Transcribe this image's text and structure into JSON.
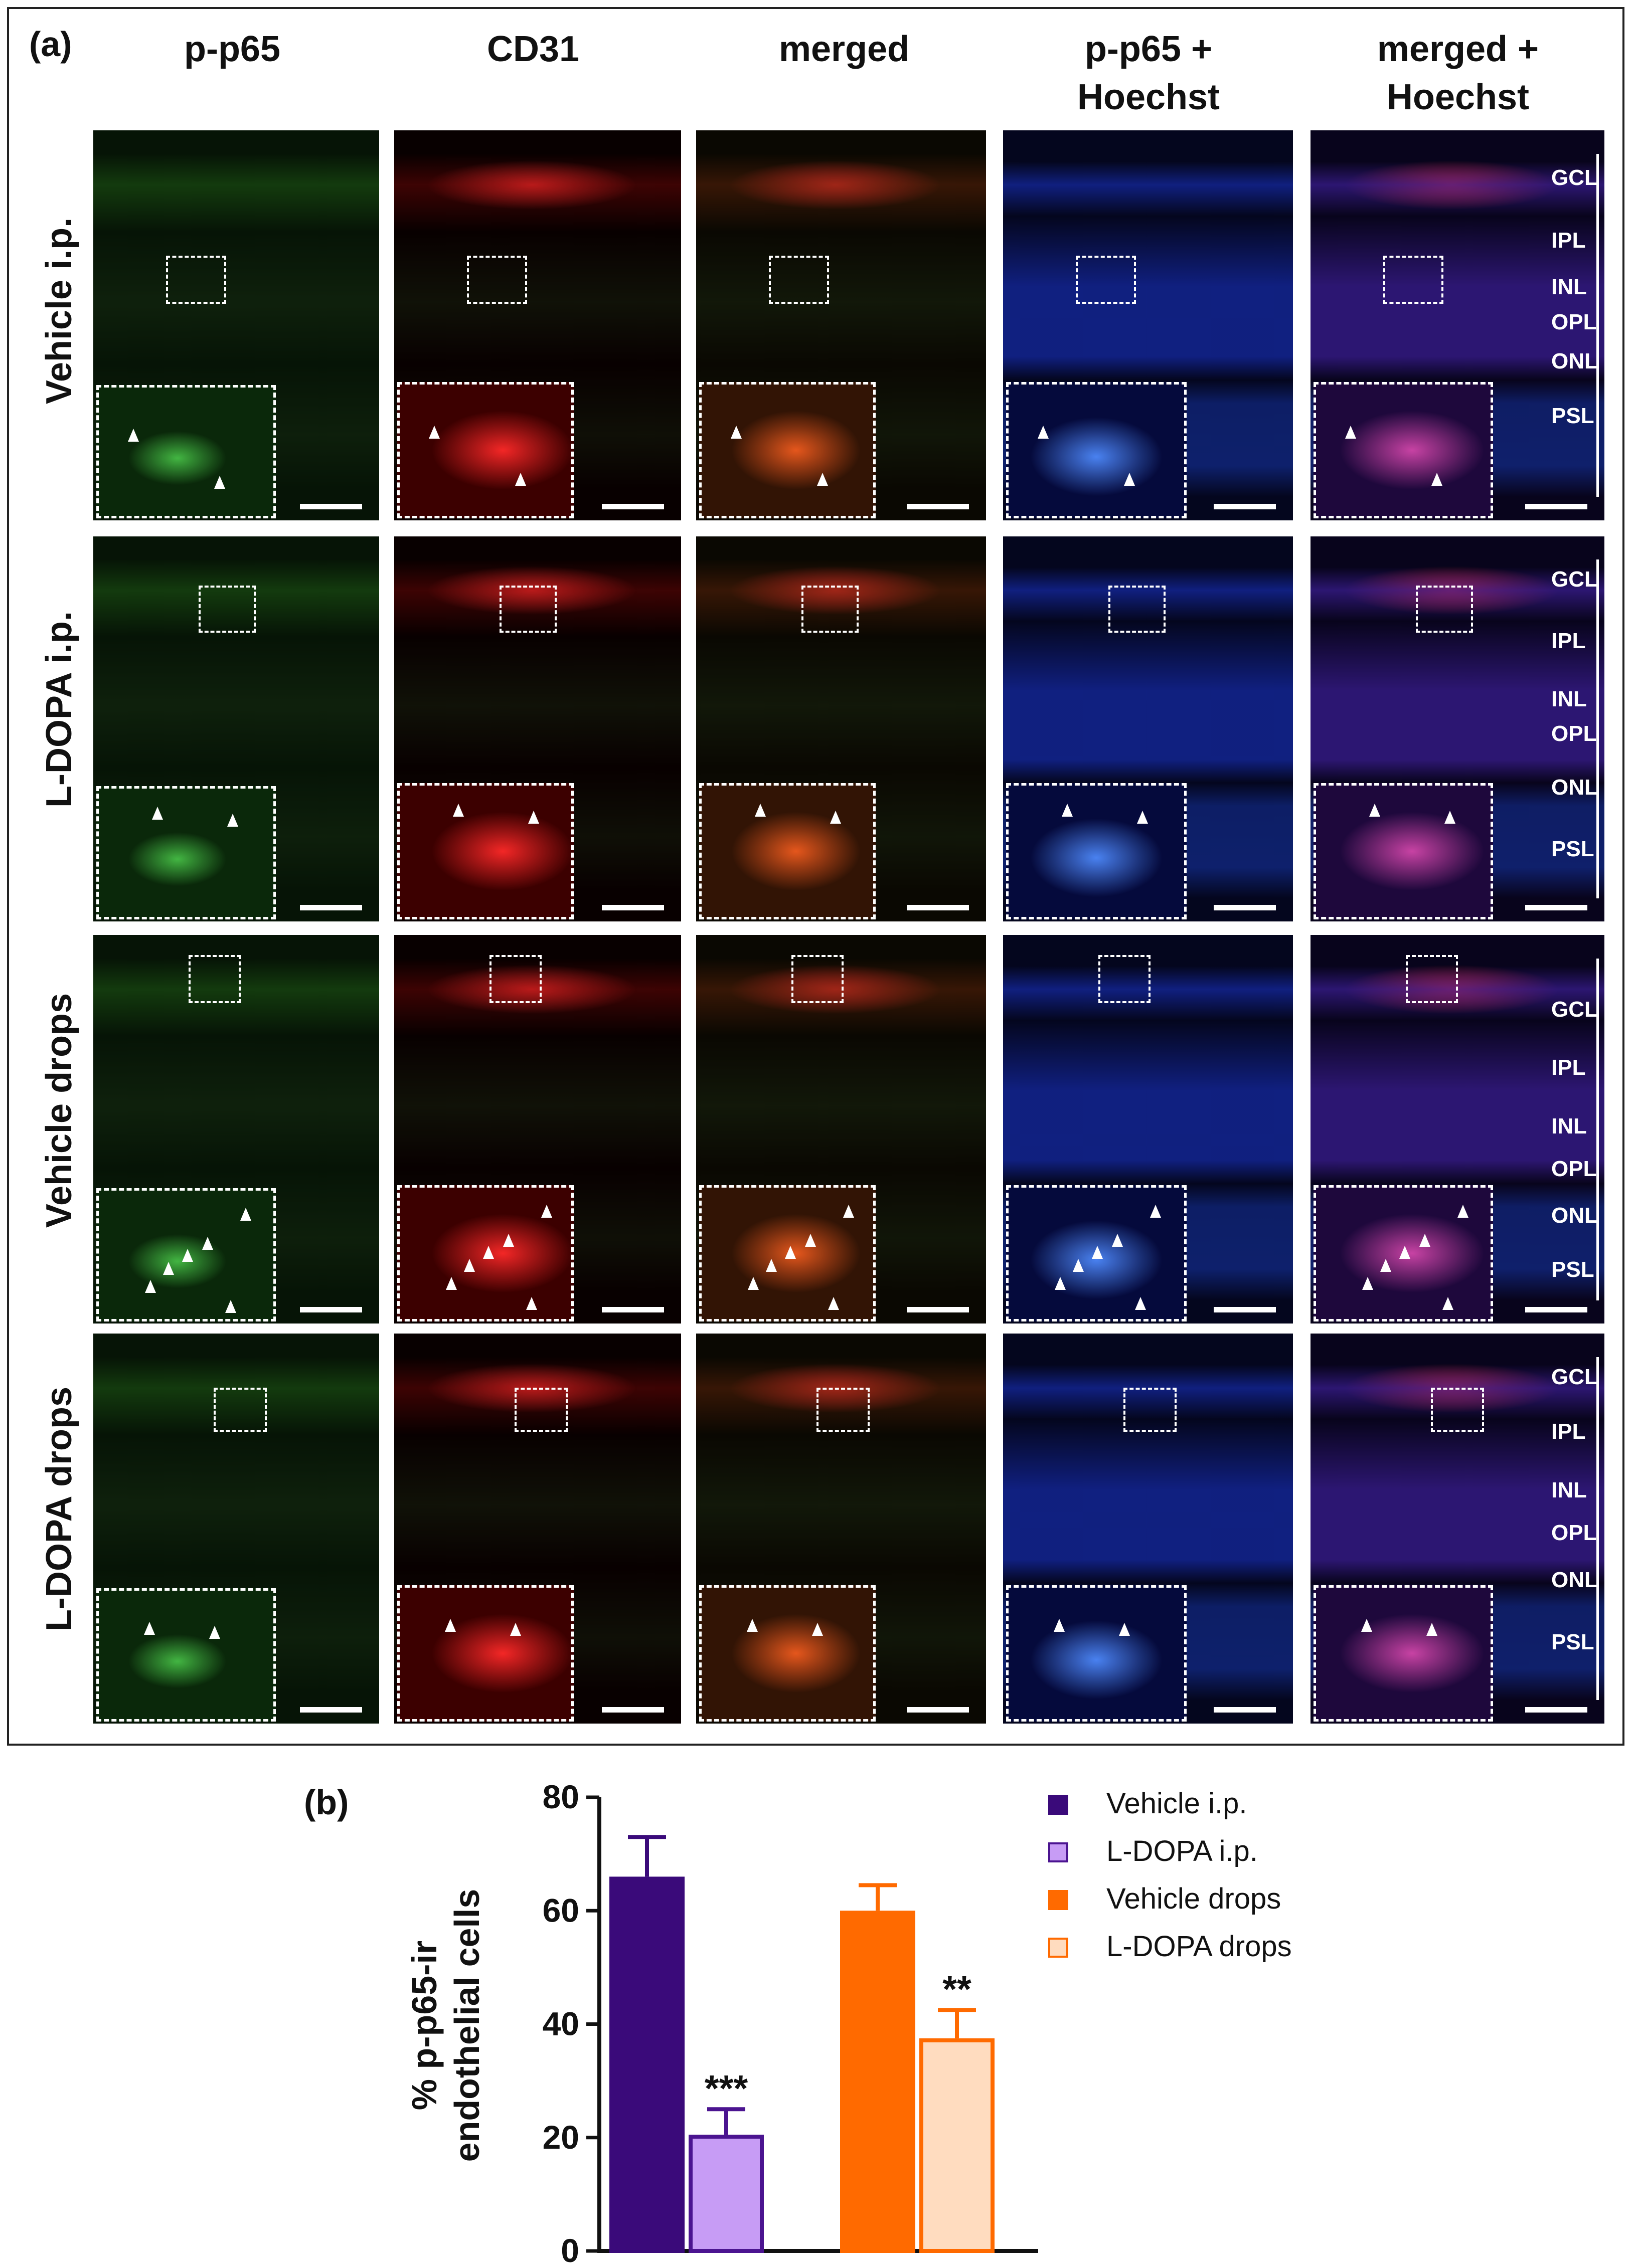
{
  "panel_a": {
    "label": "(a)",
    "columns": [
      "p-p65",
      "CD31",
      "merged",
      "p-p65 +\nHoechst",
      "merged +\nHoechst"
    ],
    "rows": [
      "Vehicle i.p.",
      "L-DOPA i.p.",
      "Vehicle drops",
      "L-DOPA drops"
    ],
    "retinal_layers": [
      "GCL",
      "IPL",
      "INL",
      "OPL",
      "ONL",
      "PSL"
    ]
  },
  "panel_b": {
    "label": "(b)"
  },
  "chart_data": {
    "type": "bar",
    "ylabel": "% p-p65-ir\nendothelial cells",
    "ylim": [
      0,
      80
    ],
    "yticks": [
      0,
      20,
      40,
      60,
      80
    ],
    "series": [
      {
        "name": "Vehicle i.p.",
        "value": 66,
        "error": 7,
        "group": 0,
        "fill": "#3a0a7a",
        "stroke": "#3a0a7a",
        "significance": ""
      },
      {
        "name": "L-DOPA i.p.",
        "value": 20.5,
        "error": 4.5,
        "group": 0,
        "fill": "#c79cf5",
        "stroke": "#4b1490",
        "significance": "***"
      },
      {
        "name": "Vehicle drops",
        "value": 60,
        "error": 4.5,
        "group": 1,
        "fill": "#ff6a00",
        "stroke": "#ff6a00",
        "significance": ""
      },
      {
        "name": "L-DOPA drops",
        "value": 37.5,
        "error": 5,
        "group": 1,
        "fill": "#ffdcbf",
        "stroke": "#ff6a00",
        "significance": "**"
      }
    ]
  }
}
